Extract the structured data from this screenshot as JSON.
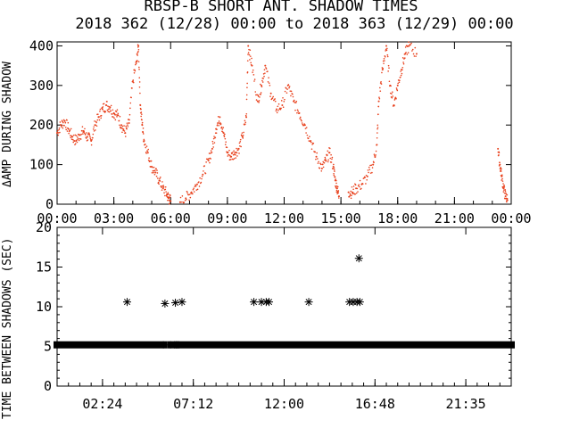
{
  "title_line1": "RBSP-B SHORT ANT. SHADOW TIMES",
  "title_line2": "2018 362 (12/28) 00:00 to 2018 363 (12/29) 00:00",
  "chart_data": [
    {
      "type": "scatter",
      "ylabel": "ΔAMP DURING SHADOW",
      "ylim": [
        0,
        410
      ],
      "y_ticks": [
        "0",
        "100",
        "200",
        "300",
        "400"
      ],
      "x_ticks": [
        "00:00",
        "03:00",
        "06:00",
        "09:00",
        "12:00",
        "15:00",
        "18:00",
        "21:00",
        "00:00"
      ],
      "xlim_hours": [
        0,
        24
      ],
      "series_color": "#e8401c",
      "points": [
        [
          0.0,
          180
        ],
        [
          0.2,
          200
        ],
        [
          0.4,
          210
        ],
        [
          0.6,
          190
        ],
        [
          0.8,
          170
        ],
        [
          1.0,
          160
        ],
        [
          1.2,
          175
        ],
        [
          1.4,
          185
        ],
        [
          1.6,
          170
        ],
        [
          1.8,
          160
        ],
        [
          2.0,
          200
        ],
        [
          2.2,
          220
        ],
        [
          2.4,
          240
        ],
        [
          2.6,
          250
        ],
        [
          2.8,
          245
        ],
        [
          3.0,
          230
        ],
        [
          3.2,
          225
        ],
        [
          3.4,
          200
        ],
        [
          3.6,
          180
        ],
        [
          3.8,
          205
        ],
        [
          4.0,
          310
        ],
        [
          4.2,
          360
        ],
        [
          4.3,
          400
        ],
        [
          4.4,
          250
        ],
        [
          4.5,
          200
        ],
        [
          4.6,
          160
        ],
        [
          4.8,
          130
        ],
        [
          5.0,
          95
        ],
        [
          5.2,
          80
        ],
        [
          5.4,
          60
        ],
        [
          5.6,
          40
        ],
        [
          5.8,
          25
        ],
        [
          5.9,
          15
        ],
        [
          6.0,
          8
        ],
        [
          6.5,
          5
        ],
        [
          6.8,
          15
        ],
        [
          7.1,
          30
        ],
        [
          7.4,
          50
        ],
        [
          7.7,
          75
        ],
        [
          8.0,
          110
        ],
        [
          8.2,
          140
        ],
        [
          8.4,
          190
        ],
        [
          8.6,
          220
        ],
        [
          8.8,
          180
        ],
        [
          9.0,
          130
        ],
        [
          9.2,
          120
        ],
        [
          9.4,
          130
        ],
        [
          9.6,
          140
        ],
        [
          9.8,
          170
        ],
        [
          10.0,
          220
        ],
        [
          10.1,
          400
        ],
        [
          10.3,
          350
        ],
        [
          10.6,
          260
        ],
        [
          10.8,
          300
        ],
        [
          11.0,
          350
        ],
        [
          11.3,
          280
        ],
        [
          11.6,
          240
        ],
        [
          11.9,
          250
        ],
        [
          12.2,
          300
        ],
        [
          12.5,
          260
        ],
        [
          12.8,
          230
        ],
        [
          13.1,
          200
        ],
        [
          13.4,
          160
        ],
        [
          13.7,
          120
        ],
        [
          14.0,
          90
        ],
        [
          14.2,
          110
        ],
        [
          14.4,
          130
        ],
        [
          14.6,
          95
        ],
        [
          14.7,
          60
        ],
        [
          14.8,
          40
        ],
        [
          14.9,
          20
        ],
        [
          15.4,
          30
        ],
        [
          15.6,
          30
        ],
        [
          15.8,
          40
        ],
        [
          16.1,
          50
        ],
        [
          16.4,
          70
        ],
        [
          16.7,
          100
        ],
        [
          16.9,
          150
        ],
        [
          17.0,
          260
        ],
        [
          17.2,
          340
        ],
        [
          17.4,
          400
        ],
        [
          17.6,
          300
        ],
        [
          17.8,
          250
        ],
        [
          18.0,
          300
        ],
        [
          18.2,
          340
        ],
        [
          18.4,
          380
        ],
        [
          18.6,
          400
        ],
        [
          19.0,
          380
        ],
        [
          23.3,
          140
        ],
        [
          23.4,
          100
        ],
        [
          23.5,
          70
        ],
        [
          23.6,
          40
        ],
        [
          23.7,
          20
        ],
        [
          23.8,
          10
        ]
      ]
    },
    {
      "type": "scatter",
      "ylabel": "TIME BETWEEN SHADOWS (SEC)",
      "ylim": [
        0,
        20
      ],
      "y_ticks": [
        "0",
        "5",
        "10",
        "15",
        "20"
      ],
      "x_ticks": [
        "02:24",
        "07:12",
        "12:00",
        "16:48",
        "21:35"
      ],
      "xlim_hours": [
        0,
        24
      ],
      "baseline_value": 5.2,
      "baseline_gaps_hours": [
        [
          5.62,
          5.98
        ],
        [
          6.2,
          6.42
        ]
      ],
      "marker": "asterisk",
      "outliers": [
        [
          3.7,
          10.6
        ],
        [
          5.7,
          10.4
        ],
        [
          6.25,
          10.5
        ],
        [
          6.6,
          10.6
        ],
        [
          10.4,
          10.6
        ],
        [
          10.8,
          10.6
        ],
        [
          11.05,
          10.6
        ],
        [
          11.2,
          10.6
        ],
        [
          13.3,
          10.6
        ],
        [
          15.45,
          10.6
        ],
        [
          15.65,
          10.6
        ],
        [
          15.85,
          10.6
        ],
        [
          16.0,
          10.6
        ],
        [
          15.95,
          16.1
        ]
      ]
    }
  ]
}
